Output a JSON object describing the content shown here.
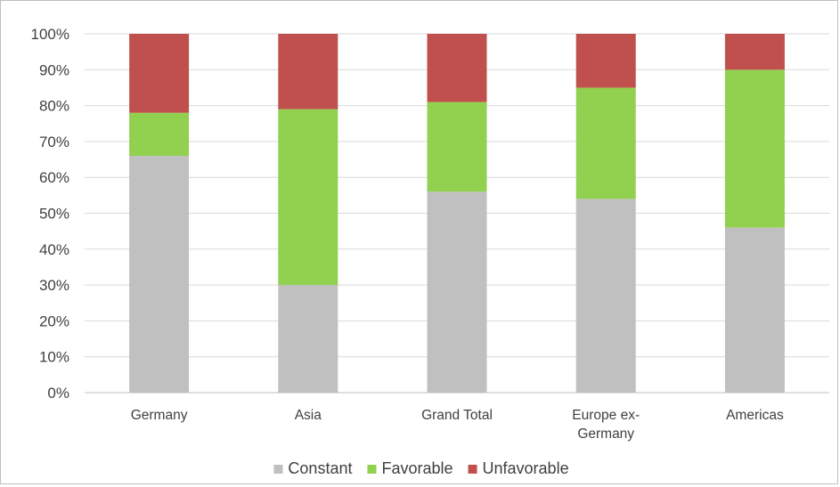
{
  "chart_data": {
    "type": "bar",
    "stacked": true,
    "categories": [
      [
        "Germany"
      ],
      [
        "Asia"
      ],
      [
        "Grand Total"
      ],
      [
        "Europe ex-",
        "Germany"
      ],
      [
        "Americas"
      ]
    ],
    "series": [
      {
        "name": "Constant",
        "color": "#c0c0c0",
        "values": [
          0.66,
          0.3,
          0.56,
          0.54,
          0.46
        ]
      },
      {
        "name": "Favorable",
        "color": "#92d050",
        "values": [
          0.12,
          0.49,
          0.25,
          0.31,
          0.44
        ]
      },
      {
        "name": "Unfavorable",
        "color": "#c0504d",
        "values": [
          0.22,
          0.21,
          0.19,
          0.15,
          0.1
        ]
      }
    ],
    "ylim": [
      0,
      1
    ],
    "yticks": [
      "0%",
      "10%",
      "20%",
      "30%",
      "40%",
      "50%",
      "60%",
      "70%",
      "80%",
      "90%",
      "100%"
    ],
    "title": "",
    "xlabel": "",
    "ylabel": "",
    "grid": true,
    "legend_position": "bottom"
  }
}
